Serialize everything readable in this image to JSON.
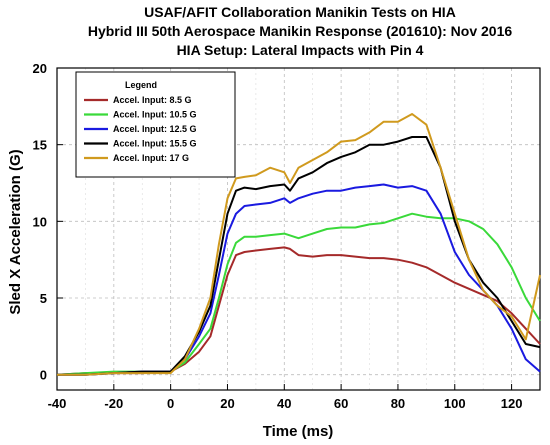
{
  "chart_data": {
    "type": "line",
    "title": [
      "USAF/AFIT Collaboration Manikin Tests on HIA",
      "Hybrid III 50th Aerospace Manikin Response (201610): Nov 2016",
      "HIA Setup:  Lateral Impacts with Pin 4"
    ],
    "xlabel": "Time  (ms)",
    "ylabel": "Sled X Acceleration  (G)",
    "xlim": [
      -40,
      130
    ],
    "ylim": [
      -1,
      20
    ],
    "xticks": [
      -40,
      -20,
      0,
      20,
      40,
      60,
      80,
      100,
      120
    ],
    "yticks": [
      0,
      5,
      10,
      15,
      20
    ],
    "grid": true,
    "legend": {
      "title": "Legend",
      "placement": "top-left"
    },
    "series": [
      {
        "name": "Accel. Input: 8.5 G",
        "color": "#a52a2a",
        "points": [
          [
            -40,
            0
          ],
          [
            -30,
            0.1
          ],
          [
            -20,
            0.1
          ],
          [
            -10,
            0.1
          ],
          [
            0,
            0.2
          ],
          [
            5,
            0.7
          ],
          [
            10,
            1.5
          ],
          [
            14,
            2.5
          ],
          [
            17,
            4.5
          ],
          [
            20,
            6.5
          ],
          [
            23,
            7.8
          ],
          [
            26,
            8.0
          ],
          [
            30,
            8.1
          ],
          [
            35,
            8.2
          ],
          [
            40,
            8.3
          ],
          [
            42,
            8.2
          ],
          [
            45,
            7.8
          ],
          [
            50,
            7.7
          ],
          [
            55,
            7.8
          ],
          [
            60,
            7.8
          ],
          [
            65,
            7.7
          ],
          [
            70,
            7.6
          ],
          [
            75,
            7.6
          ],
          [
            80,
            7.5
          ],
          [
            85,
            7.3
          ],
          [
            90,
            7.0
          ],
          [
            95,
            6.5
          ],
          [
            100,
            6.0
          ],
          [
            105,
            5.6
          ],
          [
            110,
            5.2
          ],
          [
            115,
            4.8
          ],
          [
            120,
            4.0
          ],
          [
            125,
            3.0
          ],
          [
            130,
            2.0
          ]
        ]
      },
      {
        "name": "Accel. Input: 10.5 G",
        "color": "#3ad93a",
        "points": [
          [
            -40,
            0
          ],
          [
            -30,
            0.1
          ],
          [
            -20,
            0.2
          ],
          [
            -10,
            0.2
          ],
          [
            0,
            0.2
          ],
          [
            5,
            0.8
          ],
          [
            10,
            2.0
          ],
          [
            14,
            3.0
          ],
          [
            17,
            5.0
          ],
          [
            20,
            7.2
          ],
          [
            23,
            8.6
          ],
          [
            26,
            9.0
          ],
          [
            30,
            9.0
          ],
          [
            35,
            9.1
          ],
          [
            40,
            9.2
          ],
          [
            45,
            8.9
          ],
          [
            50,
            9.2
          ],
          [
            55,
            9.5
          ],
          [
            60,
            9.6
          ],
          [
            65,
            9.6
          ],
          [
            70,
            9.8
          ],
          [
            75,
            9.9
          ],
          [
            80,
            10.2
          ],
          [
            85,
            10.5
          ],
          [
            90,
            10.3
          ],
          [
            95,
            10.2
          ],
          [
            100,
            10.2
          ],
          [
            105,
            10.0
          ],
          [
            110,
            9.5
          ],
          [
            115,
            8.5
          ],
          [
            120,
            7.0
          ],
          [
            125,
            5.0
          ],
          [
            130,
            3.5
          ]
        ]
      },
      {
        "name": "Accel. Input: 12.5 G",
        "color": "#1a1ae0",
        "points": [
          [
            -40,
            0
          ],
          [
            -30,
            0
          ],
          [
            -20,
            0.1
          ],
          [
            -10,
            0.2
          ],
          [
            0,
            0.2
          ],
          [
            5,
            1.0
          ],
          [
            10,
            2.5
          ],
          [
            14,
            4.0
          ],
          [
            17,
            6.5
          ],
          [
            20,
            9.2
          ],
          [
            23,
            10.5
          ],
          [
            26,
            11.0
          ],
          [
            30,
            11.1
          ],
          [
            35,
            11.2
          ],
          [
            40,
            11.5
          ],
          [
            42,
            11.2
          ],
          [
            45,
            11.5
          ],
          [
            50,
            11.8
          ],
          [
            55,
            12.0
          ],
          [
            60,
            12.0
          ],
          [
            65,
            12.2
          ],
          [
            70,
            12.3
          ],
          [
            75,
            12.4
          ],
          [
            80,
            12.2
          ],
          [
            85,
            12.3
          ],
          [
            90,
            12.0
          ],
          [
            95,
            10.5
          ],
          [
            100,
            8.0
          ],
          [
            105,
            6.5
          ],
          [
            110,
            5.5
          ],
          [
            115,
            4.5
          ],
          [
            120,
            3.0
          ],
          [
            125,
            1.0
          ],
          [
            130,
            0.2
          ]
        ]
      },
      {
        "name": "Accel. Input: 15.5 G",
        "color": "#000000",
        "points": [
          [
            -40,
            0
          ],
          [
            -30,
            0
          ],
          [
            -20,
            0.1
          ],
          [
            -10,
            0.2
          ],
          [
            0,
            0.2
          ],
          [
            5,
            1.2
          ],
          [
            10,
            2.8
          ],
          [
            14,
            4.5
          ],
          [
            17,
            7.5
          ],
          [
            20,
            10.5
          ],
          [
            23,
            12.0
          ],
          [
            26,
            12.2
          ],
          [
            30,
            12.1
          ],
          [
            35,
            12.3
          ],
          [
            40,
            12.4
          ],
          [
            42,
            12.0
          ],
          [
            45,
            12.8
          ],
          [
            50,
            13.2
          ],
          [
            55,
            13.8
          ],
          [
            60,
            14.2
          ],
          [
            65,
            14.5
          ],
          [
            70,
            15.0
          ],
          [
            75,
            15.0
          ],
          [
            80,
            15.2
          ],
          [
            85,
            15.5
          ],
          [
            90,
            15.5
          ],
          [
            95,
            13.5
          ],
          [
            100,
            10.0
          ],
          [
            105,
            7.5
          ],
          [
            110,
            6.0
          ],
          [
            115,
            5.0
          ],
          [
            120,
            3.5
          ],
          [
            125,
            2.0
          ],
          [
            130,
            1.8
          ]
        ]
      },
      {
        "name": "Accel. Input: 17 G",
        "color": "#d09a1e",
        "points": [
          [
            -40,
            0
          ],
          [
            -30,
            0
          ],
          [
            -20,
            0.1
          ],
          [
            -10,
            0.1
          ],
          [
            0,
            0.1
          ],
          [
            5,
            1.0
          ],
          [
            10,
            3.0
          ],
          [
            14,
            5.0
          ],
          [
            17,
            8.5
          ],
          [
            20,
            11.5
          ],
          [
            23,
            12.8
          ],
          [
            26,
            12.9
          ],
          [
            30,
            13.0
          ],
          [
            35,
            13.5
          ],
          [
            40,
            13.2
          ],
          [
            42,
            12.5
          ],
          [
            45,
            13.5
          ],
          [
            50,
            14.0
          ],
          [
            55,
            14.5
          ],
          [
            60,
            15.2
          ],
          [
            65,
            15.3
          ],
          [
            70,
            15.8
          ],
          [
            75,
            16.5
          ],
          [
            80,
            16.5
          ],
          [
            85,
            17.0
          ],
          [
            90,
            16.3
          ],
          [
            95,
            13.5
          ],
          [
            100,
            10.5
          ],
          [
            105,
            7.5
          ],
          [
            110,
            5.5
          ],
          [
            115,
            4.5
          ],
          [
            120,
            3.8
          ],
          [
            125,
            2.3
          ],
          [
            130,
            6.5
          ]
        ]
      }
    ]
  }
}
